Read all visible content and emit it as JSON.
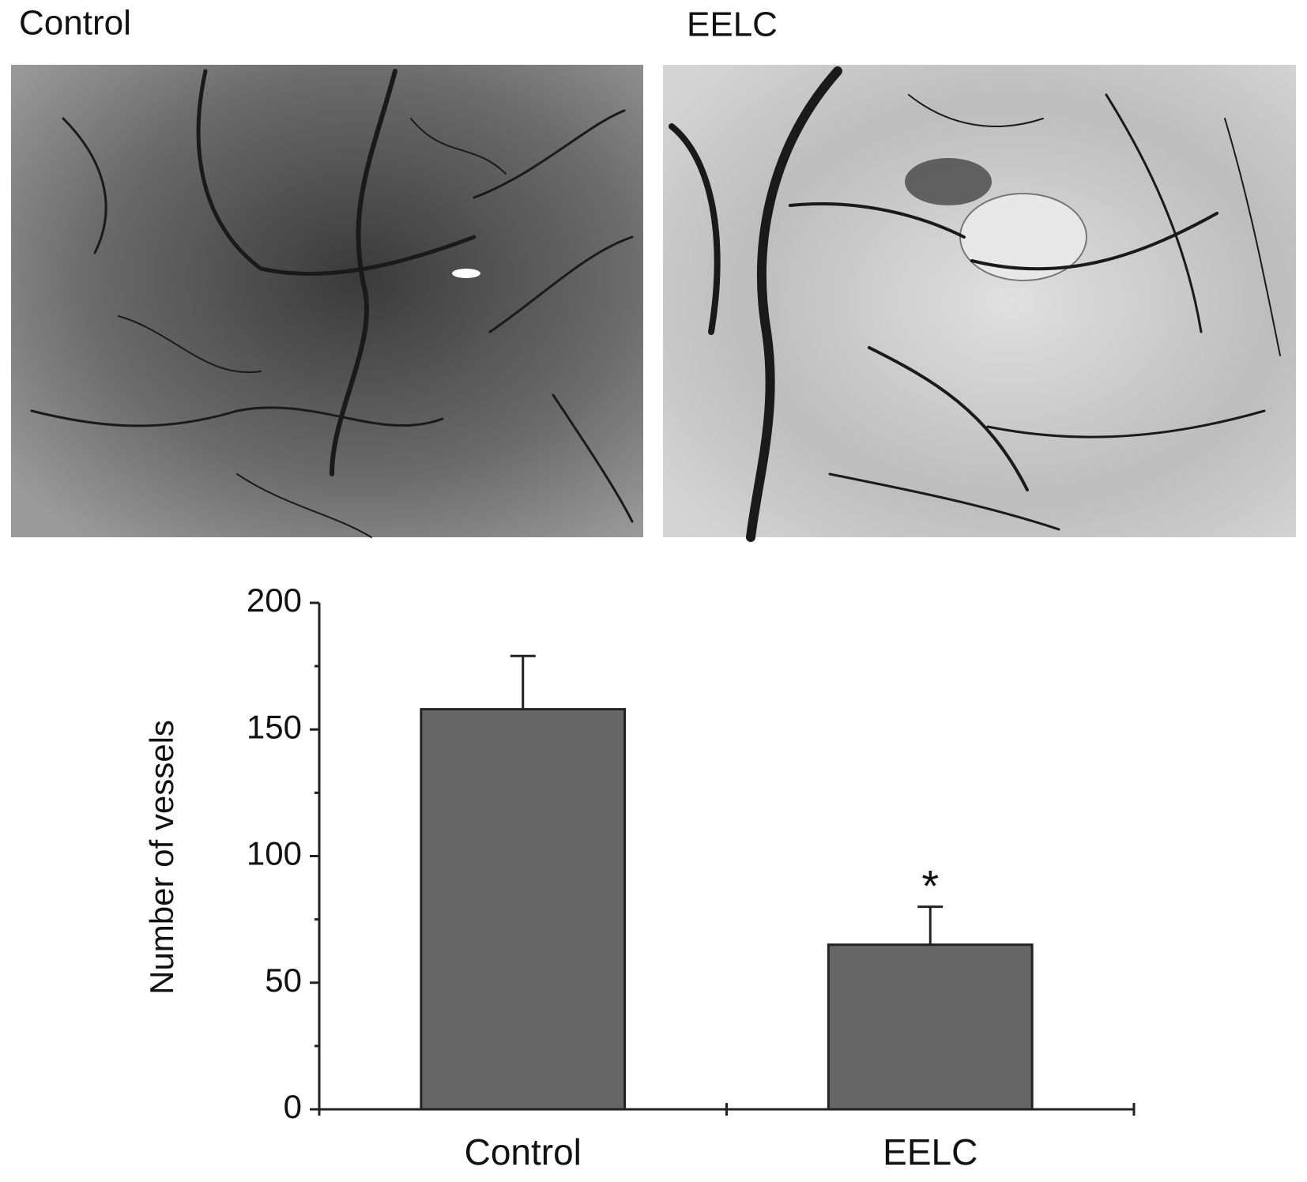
{
  "panels": [
    {
      "label": "Control"
    },
    {
      "label": "EELC"
    }
  ],
  "chart_data": {
    "type": "bar",
    "categories": [
      "Control",
      "EELC"
    ],
    "values": [
      158,
      65
    ],
    "errors": [
      21,
      15
    ],
    "annotations": [
      null,
      "*"
    ],
    "ylabel": "Number of vessels",
    "color": "#666666",
    "ylim": [
      0,
      200
    ],
    "yticks": [
      0,
      50,
      100,
      150,
      200
    ],
    "minor_yticks": [
      25,
      75,
      125,
      175
    ]
  }
}
